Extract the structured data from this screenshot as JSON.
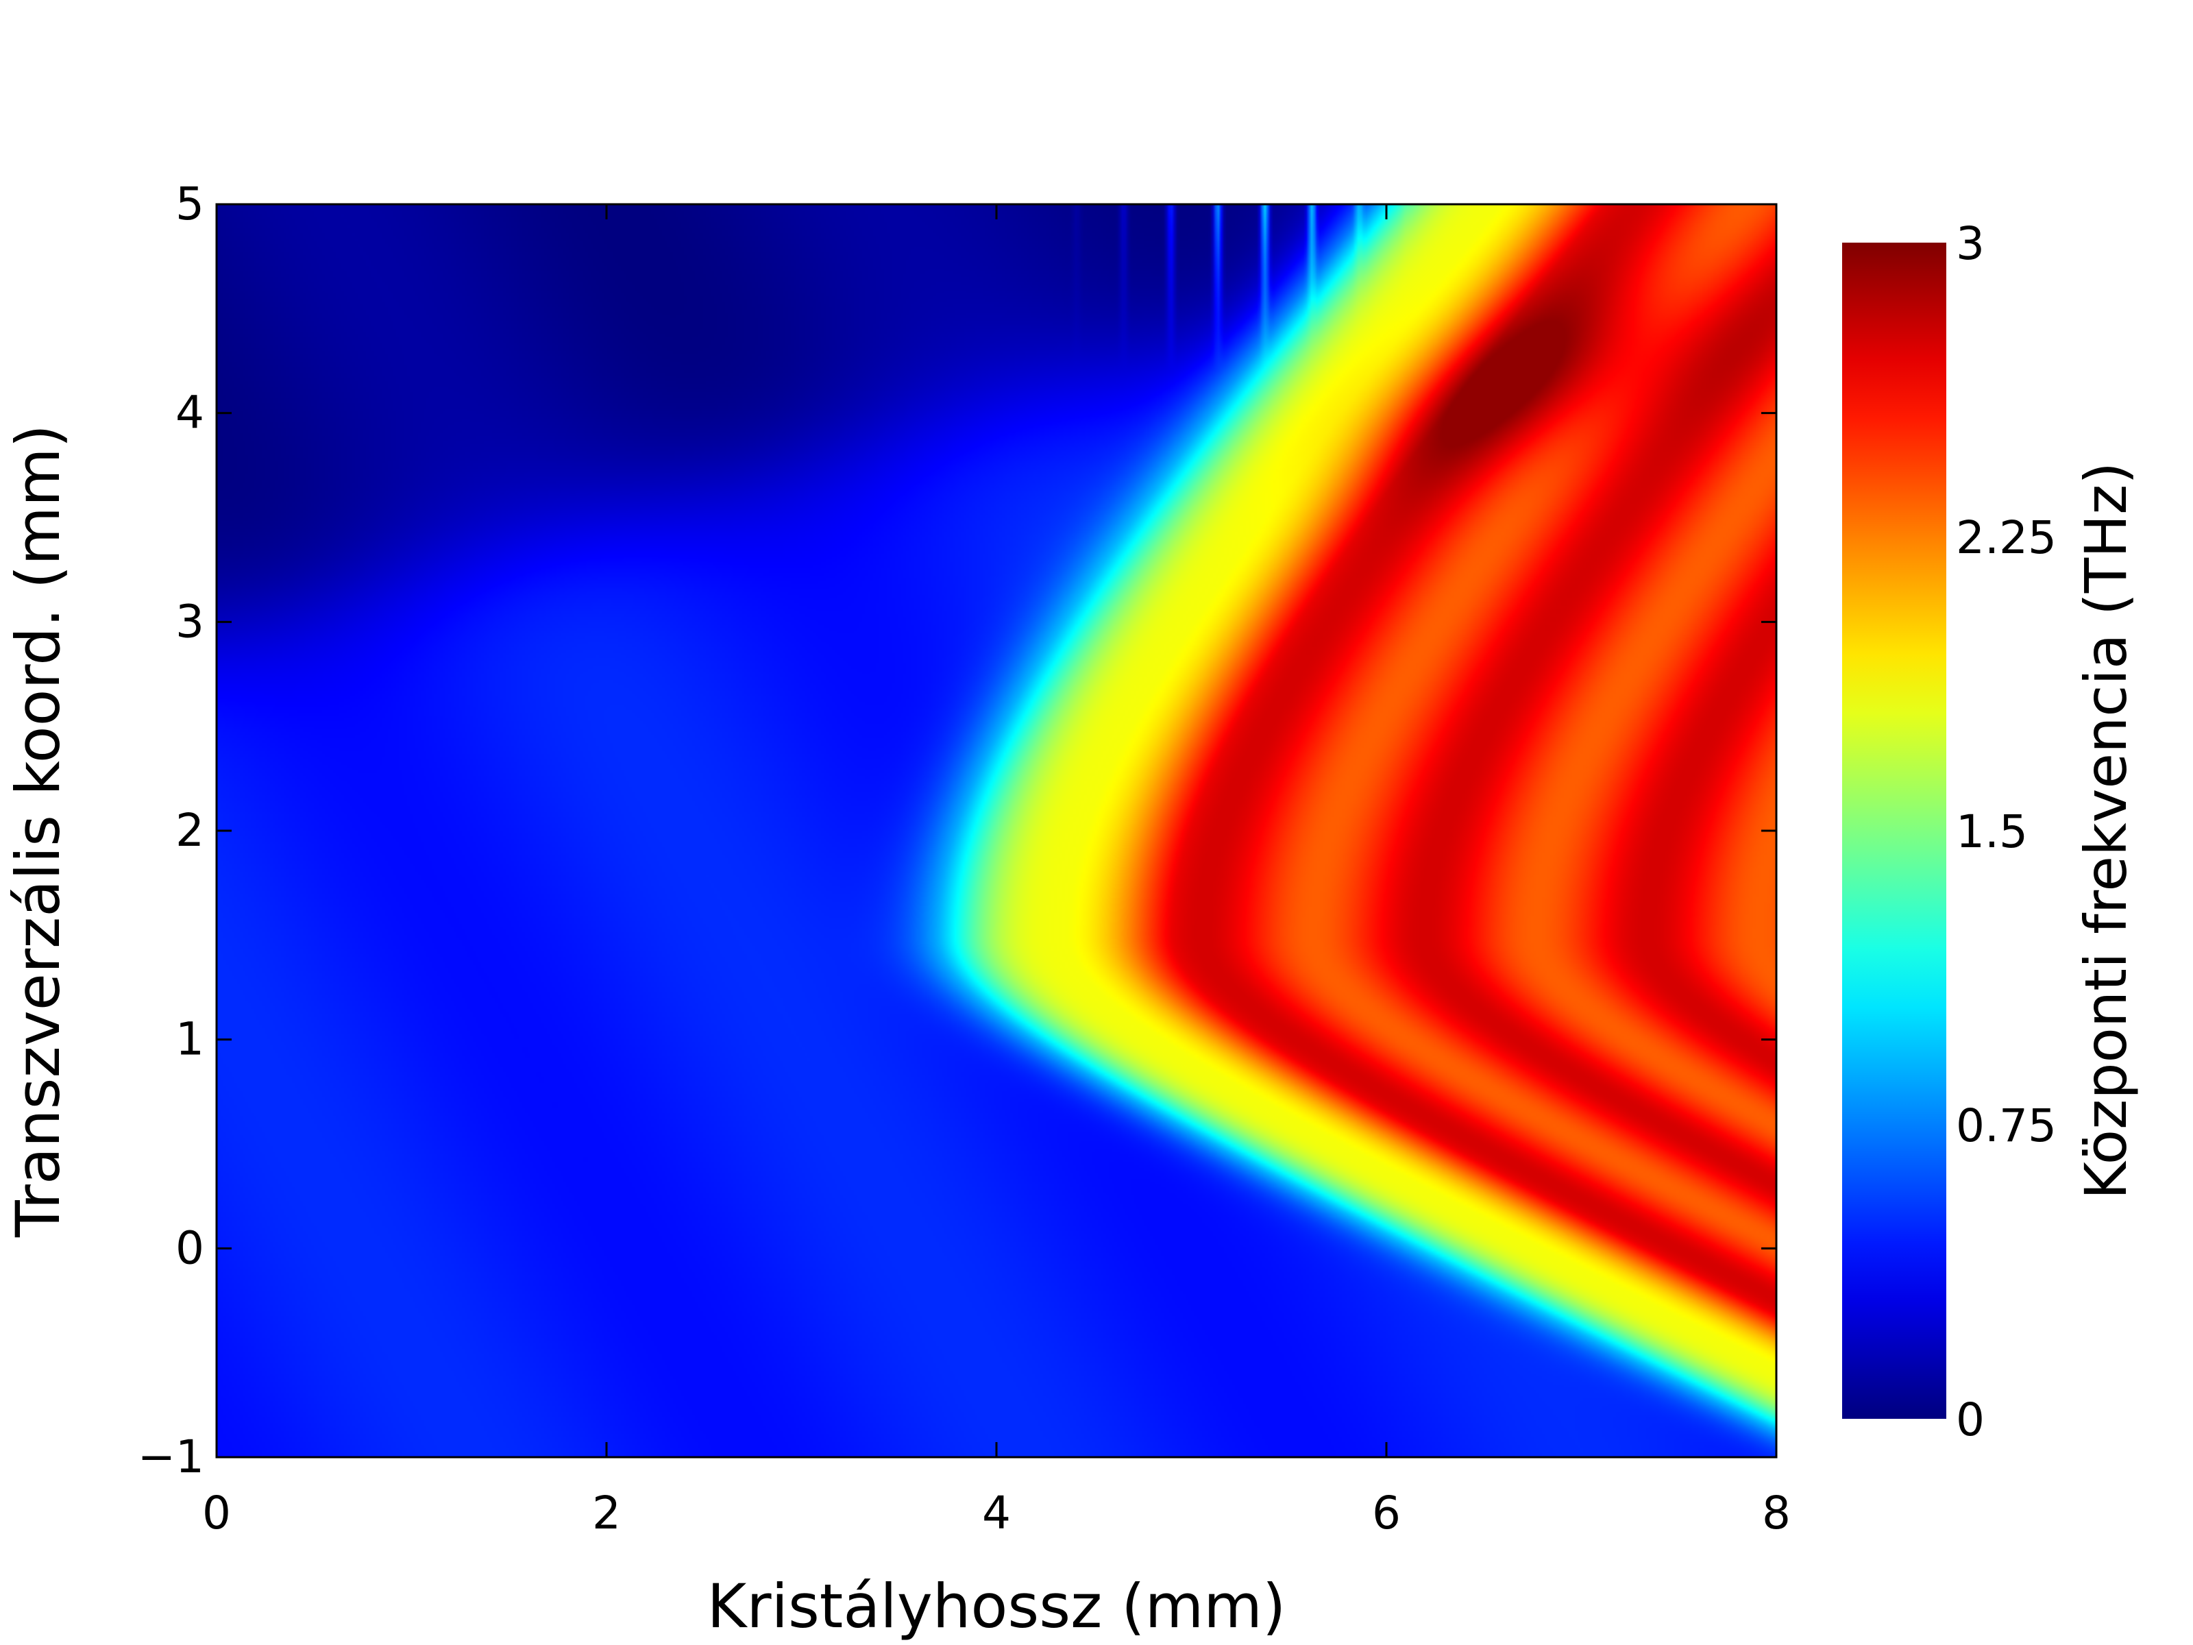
{
  "chart_data": {
    "type": "heatmap",
    "title": "",
    "xlabel": "Kristályhossz (mm)",
    "ylabel": "Transzverzális koord. (mm)",
    "xlim": [
      0,
      8
    ],
    "ylim": [
      -1,
      5
    ],
    "xticks": [
      0,
      2,
      4,
      6,
      8
    ],
    "xtick_labels": [
      "0",
      "2",
      "4",
      "6",
      "8"
    ],
    "yticks": [
      -1,
      0,
      1,
      2,
      3,
      4,
      5
    ],
    "ytick_labels": [
      "−1",
      "0",
      "1",
      "2",
      "3",
      "4",
      "5"
    ],
    "colormap": "jet",
    "colorbar": {
      "label": "Központi frekvencia (THz)",
      "range": [
        0,
        3
      ],
      "ticks": [
        0,
        0.75,
        1.5,
        2.25,
        3
      ],
      "tick_labels": [
        "0",
        "0.75",
        "1.5",
        "2.25",
        "3"
      ]
    },
    "grid": false,
    "field_description": {
      "background_value": 0.45,
      "upper_left_low_region_value": 0.05,
      "high_region_value": 2.55,
      "peak_value": 2.95,
      "front_vertex": [
        3.7,
        1.5
      ],
      "front_upper_end": [
        7.3,
        5.0
      ],
      "front_lower_asymptote_y": 0.55
    }
  }
}
